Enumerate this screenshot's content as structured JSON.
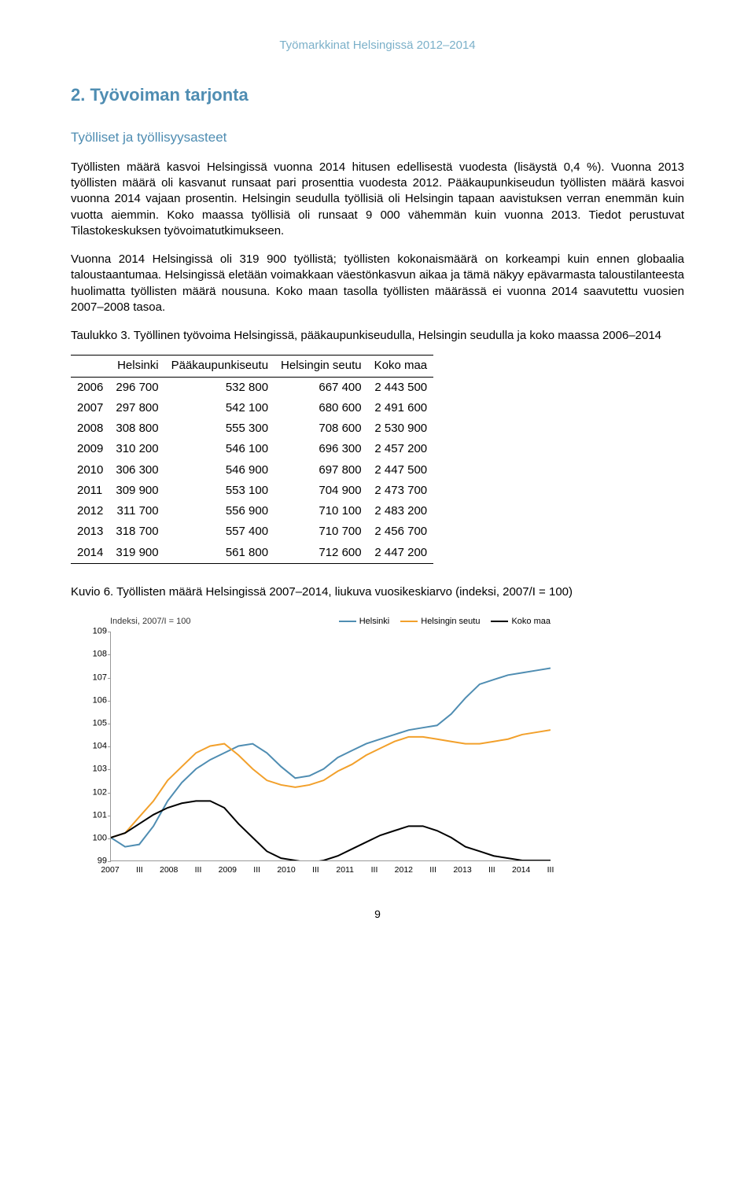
{
  "header": "Työmarkkinat Helsingissä 2012–2014",
  "section_title": "2. Työvoiman tarjonta",
  "sub_title": "Työlliset ja työllisyysasteet",
  "para1": "Työllisten määrä kasvoi Helsingissä vuonna 2014 hitusen edellisestä vuodesta (lisäystä 0,4 %). Vuonna 2013 työllisten määrä oli kasvanut runsaat pari prosenttia vuodesta 2012. Pääkaupunkiseudun työllisten määrä kasvoi vuonna 2014 vajaan prosentin. Helsingin seudulla työllisiä oli Helsingin tapaan aavistuksen verran enemmän kuin vuotta aiemmin. Koko maassa työllisiä oli runsaat 9 000 vähemmän kuin vuonna 2013. Tiedot perustuvat Tilastokeskuksen työvoimatutkimukseen.",
  "para2": "Vuonna 2014 Helsingissä oli 319 900 työllistä; työllisten kokonaismäärä on korkeampi kuin ennen globaalia taloustaantumaa. Helsingissä eletään voimakkaan väestönkasvun aikaa ja tämä näkyy epävarmasta taloustilanteesta huolimatta työllisten määrä nousuna. Koko maan tasolla työllisten määrässä ei vuonna 2014 saavutettu vuosien 2007–2008 tasoa.",
  "taulukko_label": "Taulukko 3. Työllinen työvoima Helsingissä, pääkaupunkiseudulla, Helsingin seudulla ja koko maassa 2006–2014",
  "table": {
    "columns": [
      "",
      "Helsinki",
      "Pääkaupunkiseutu",
      "Helsingin seutu",
      "Koko maa"
    ],
    "rows": [
      [
        "2006",
        "296 700",
        "532 800",
        "667 400",
        "2 443 500"
      ],
      [
        "2007",
        "297 800",
        "542 100",
        "680 600",
        "2 491 600"
      ],
      [
        "2008",
        "308 800",
        "555 300",
        "708 600",
        "2 530 900"
      ],
      [
        "2009",
        "310 200",
        "546 100",
        "696 300",
        "2 457 200"
      ],
      [
        "2010",
        "306 300",
        "546 900",
        "697 800",
        "2 447 500"
      ],
      [
        "2011",
        "309 900",
        "553 100",
        "704 900",
        "2 473 700"
      ],
      [
        "2012",
        "311 700",
        "556 900",
        "710 100",
        "2 483 200"
      ],
      [
        "2013",
        "318 700",
        "557 400",
        "710 700",
        "2 456 700"
      ],
      [
        "2014",
        "319 900",
        "561 800",
        "712 600",
        "2 447 200"
      ]
    ]
  },
  "kuvio_label": "Kuvio 6. Työllisten määrä Helsingissä 2007–2014, liukuva vuosikeskiarvo (indeksi, 2007/I = 100)",
  "chart": {
    "type": "line",
    "y_title": "Indeksi, 2007/I = 100",
    "ylim": [
      99,
      109
    ],
    "ytick_step": 1,
    "x_labels": [
      "2007",
      "III",
      "2008",
      "III",
      "2009",
      "III",
      "2010",
      "III",
      "2011",
      "III",
      "2012",
      "III",
      "2013",
      "III",
      "2014",
      "III"
    ],
    "background_color": "#ffffff",
    "axis_color": "#999999",
    "series": [
      {
        "name": "Helsinki",
        "color": "#4f8db2",
        "values": [
          100,
          99.6,
          99.7,
          100.5,
          101.6,
          102.4,
          103.0,
          103.4,
          103.7,
          104.0,
          104.1,
          103.7,
          103.1,
          102.6,
          102.7,
          103.0,
          103.5,
          103.8,
          104.1,
          104.3,
          104.5,
          104.7,
          104.8,
          104.9,
          105.4,
          106.1,
          106.7,
          106.9,
          107.1,
          107.2,
          107.3,
          107.4
        ]
      },
      {
        "name": "Helsingin seutu",
        "color": "#f2a02b",
        "values": [
          100,
          100.2,
          100.9,
          101.6,
          102.5,
          103.1,
          103.7,
          104.0,
          104.1,
          103.6,
          103.0,
          102.5,
          102.3,
          102.2,
          102.3,
          102.5,
          102.9,
          103.2,
          103.6,
          103.9,
          104.2,
          104.4,
          104.4,
          104.3,
          104.2,
          104.1,
          104.1,
          104.2,
          104.3,
          104.5,
          104.6,
          104.7
        ]
      },
      {
        "name": "Koko maa",
        "color": "#000000",
        "values": [
          100,
          100.2,
          100.6,
          101.0,
          101.3,
          101.5,
          101.6,
          101.6,
          101.3,
          100.6,
          100.0,
          99.4,
          99.1,
          99.0,
          98.9,
          99.0,
          99.2,
          99.5,
          99.8,
          100.1,
          100.3,
          100.5,
          100.5,
          100.3,
          100.0,
          99.6,
          99.4,
          99.2,
          99.1,
          99.0,
          99.0,
          99.0
        ]
      }
    ],
    "legend_fontsize": 11,
    "line_width": 2
  },
  "page_number": "9"
}
